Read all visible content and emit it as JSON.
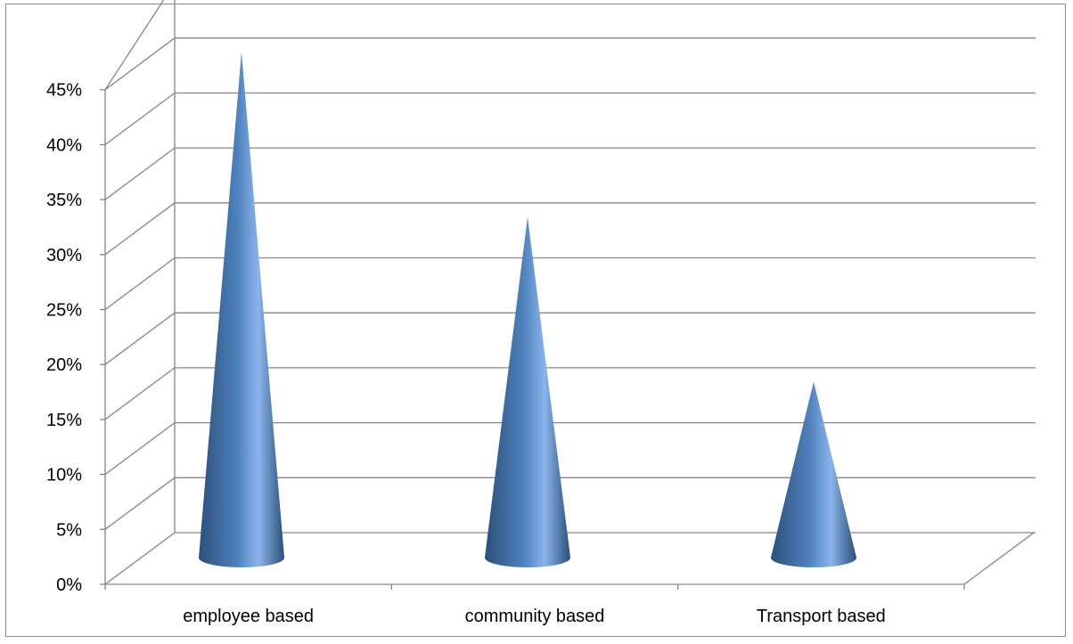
{
  "chart_data": {
    "type": "bar",
    "bar_shape": "cone",
    "three_d": true,
    "categories": [
      "employee based",
      "community based",
      "Transport based"
    ],
    "values": [
      46,
      31,
      16
    ],
    "value_unit": "%",
    "title": "",
    "xlabel": "",
    "ylabel": "",
    "ylim": [
      0,
      45
    ],
    "yticks": [
      "0%",
      "5%",
      "10%",
      "15%",
      "20%",
      "25%",
      "30%",
      "35%",
      "40%",
      "45%"
    ],
    "grid": true,
    "legend": "none",
    "colors": {
      "series": "#4f81bd",
      "series_light": "#8ab4ea",
      "series_dark": "#2c4f7c",
      "gridline": "#868686",
      "axis": "#868686"
    }
  }
}
